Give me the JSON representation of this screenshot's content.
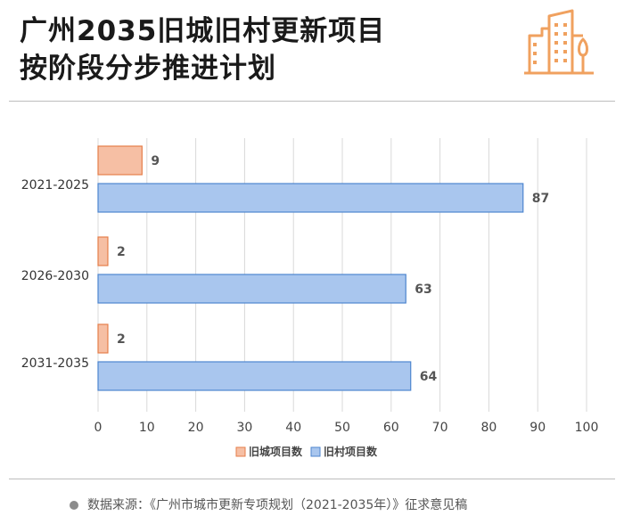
{
  "header": {
    "title_line1": "广州2035旧城旧村更新项目",
    "title_line2": "按阶段分步推进计划"
  },
  "footer": {
    "source": "数据来源：《广州市城市更新专项规划（2021-2035年）》征求意见稿"
  },
  "colors": {
    "old_city_fill": "#f6bfa4",
    "old_city_stroke": "#e67e4a",
    "old_village_fill": "#a9c6ee",
    "old_village_stroke": "#4e86cf",
    "logo": "#f0a15f"
  },
  "chart_data": {
    "type": "bar",
    "orientation": "horizontal",
    "categories": [
      "2021-2025",
      "2026-2030",
      "2031-2035"
    ],
    "series": [
      {
        "name": "旧城项目数",
        "values": [
          9,
          2,
          2
        ]
      },
      {
        "name": "旧村项目数",
        "values": [
          87,
          63,
          64
        ]
      }
    ],
    "xlim": [
      0,
      100
    ],
    "x_ticks": [
      "0",
      "10",
      "20",
      "30",
      "40",
      "50",
      "60",
      "70",
      "80",
      "90",
      "100"
    ],
    "grid": true,
    "legend_position": "bottom"
  }
}
